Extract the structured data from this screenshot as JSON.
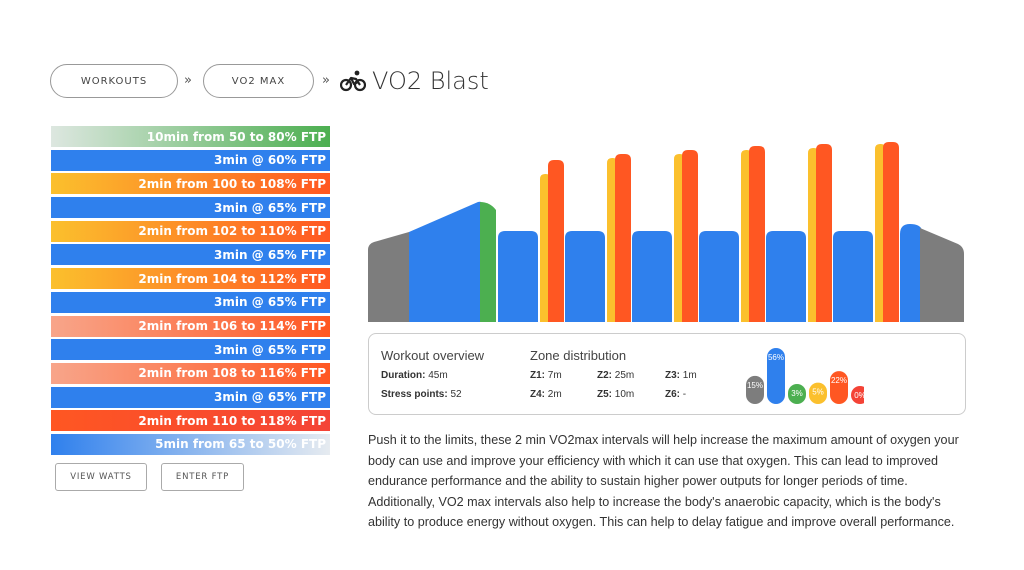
{
  "breadcrumb": {
    "workouts_label": "WORKOUTS",
    "category_label": "VO2 MAX",
    "separator": "»",
    "title": "VO2 Blast",
    "title_icon": "cyclist-icon"
  },
  "steps": [
    {
      "label": "10min from 50 to 80% FTP",
      "from": "#dde7e0",
      "to": "#4caf50"
    },
    {
      "label": "3min @ 60% FTP",
      "from": "#2f80ed",
      "to": "#2f80ed"
    },
    {
      "label": "2min from 100 to 108% FTP",
      "from": "#fbc02d",
      "to": "#ff5722"
    },
    {
      "label": "3min @ 65% FTP",
      "from": "#2f80ed",
      "to": "#2f80ed"
    },
    {
      "label": "2min from 102 to 110% FTP",
      "from": "#fbc02d",
      "to": "#ff5722"
    },
    {
      "label": "3min @ 65% FTP",
      "from": "#2f80ed",
      "to": "#2f80ed"
    },
    {
      "label": "2min from 104 to 112% FTP",
      "from": "#fbc02d",
      "to": "#ff5722"
    },
    {
      "label": "3min @ 65% FTP",
      "from": "#2f80ed",
      "to": "#2f80ed"
    },
    {
      "label": "2min from 106 to 114% FTP",
      "from": "#f8a58a",
      "to": "#ff5722"
    },
    {
      "label": "3min @ 65% FTP",
      "from": "#2f80ed",
      "to": "#2f80ed"
    },
    {
      "label": "2min from 108 to 116% FTP",
      "from": "#f8a58a",
      "to": "#ff5722"
    },
    {
      "label": "3min @ 65% FTP",
      "from": "#2f80ed",
      "to": "#2f80ed"
    },
    {
      "label": "2min from 110 to 118% FTP",
      "from": "#ff5722",
      "to": "#f44336"
    },
    {
      "label": "5min from 65 to 50% FTP",
      "from": "#2f80ed",
      "to": "#e6ebf0"
    }
  ],
  "buttons": {
    "view_watts": "VIEW WATTS",
    "enter_ftp": "ENTER FTP"
  },
  "overview": {
    "heading": "Workout overview",
    "duration_label": "Duration:",
    "duration_value": "45m",
    "stress_label": "Stress points:",
    "stress_value": "52"
  },
  "zones": {
    "heading": "Zone distribution",
    "z1_label": "Z1:",
    "z1_value": "7m",
    "z2_label": "Z2:",
    "z2_value": "25m",
    "z3_label": "Z3:",
    "z3_value": "1m",
    "z4_label": "Z4:",
    "z4_value": "2m",
    "z5_label": "Z5:",
    "z5_value": "10m",
    "z6_label": "Z6:",
    "z6_value": "-"
  },
  "zone_chart": [
    {
      "label": "15%",
      "pct": 15,
      "color": "#7d7d7d"
    },
    {
      "label": "56%",
      "pct": 56,
      "color": "#2f80ed"
    },
    {
      "label": "3%",
      "pct": 3,
      "color": "#4caf50"
    },
    {
      "label": "5%",
      "pct": 5,
      "color": "#fbc02d"
    },
    {
      "label": "22%",
      "pct": 22,
      "color": "#ff5722"
    },
    {
      "label": "0%",
      "pct": 0,
      "color": "#f44336"
    }
  ],
  "description": "Push it to the limits, these 2 min VO2max intervals will help increase the maximum amount of oxygen your body can use and improve your efficiency with which it can use that oxygen. This can lead to improved endurance performance and the ability to sustain higher power outputs for longer periods of time. Additionally, VO2 max intervals also help to increase the body's anaerobic capacity, which is the body's ability to produce energy without oxygen. This can help to delay fatigue and improve overall performance.",
  "colors": {
    "gray": "#7d7d7d",
    "blue": "#2f80ed",
    "green": "#4caf50",
    "yellow": "#fbc02d",
    "orange": "#ff5722",
    "red": "#f44336"
  }
}
